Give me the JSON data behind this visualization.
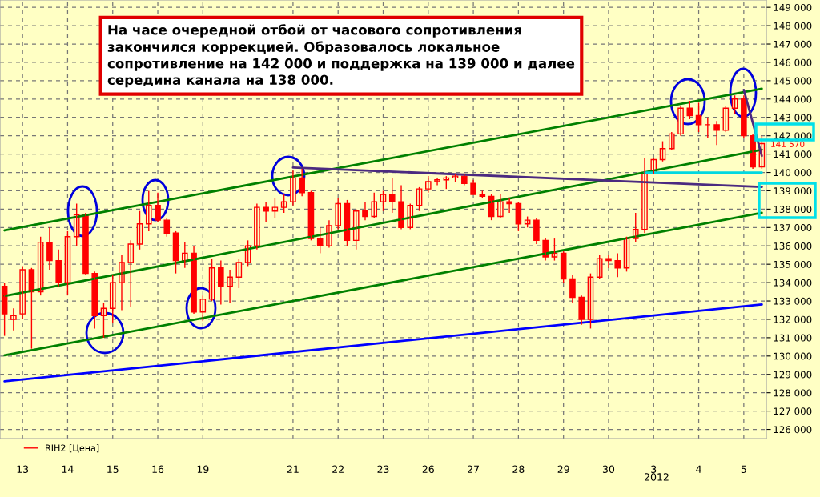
{
  "chart_data": {
    "type": "candlestick",
    "categories": [
      null,
      null,
      "13",
      null,
      null,
      null,
      null,
      "14",
      null,
      null,
      null,
      null,
      "15",
      null,
      null,
      null,
      null,
      "16",
      null,
      null,
      null,
      null,
      "19",
      null,
      null,
      null,
      null,
      null,
      null,
      null,
      null,
      null,
      "21",
      null,
      null,
      null,
      null,
      "22",
      null,
      null,
      null,
      null,
      "23",
      null,
      null,
      null,
      null,
      "26",
      null,
      null,
      null,
      null,
      "27",
      null,
      null,
      null,
      null,
      "28",
      null,
      null,
      null,
      null,
      "29",
      null,
      null,
      null,
      null,
      "30",
      null,
      null,
      null,
      null,
      "3",
      null,
      null,
      null,
      null,
      "4",
      null,
      null,
      null,
      null,
      "5",
      null,
      null
    ],
    "series": [
      {
        "type": "line",
        "color": "#008000",
        "values": [
          136840,
          null,
          null,
          null,
          null,
          null,
          null,
          null,
          null,
          null,
          null,
          null,
          null,
          null,
          null,
          null,
          null,
          null,
          null,
          null,
          null,
          null,
          null,
          null,
          null,
          null,
          null,
          null,
          null,
          null,
          null,
          null,
          null,
          null,
          null,
          null,
          null,
          null,
          null,
          null,
          null,
          null,
          null,
          null,
          null,
          null,
          null,
          null,
          null,
          null,
          null,
          null,
          null,
          null,
          null,
          null,
          null,
          null,
          null,
          null,
          null,
          null,
          null,
          null,
          null,
          null,
          null,
          null,
          null,
          null,
          null,
          null,
          null,
          null,
          null,
          null,
          null,
          null,
          null,
          null,
          null,
          null,
          null,
          null,
          144560
        ]
      },
      {
        "type": "line",
        "color": "#008000",
        "values": [
          133270,
          null,
          null,
          null,
          null,
          null,
          null,
          null,
          null,
          null,
          null,
          null,
          null,
          null,
          null,
          null,
          null,
          null,
          null,
          null,
          null,
          null,
          null,
          null,
          null,
          null,
          null,
          null,
          null,
          null,
          null,
          null,
          null,
          null,
          null,
          null,
          null,
          null,
          null,
          null,
          null,
          null,
          null,
          null,
          null,
          null,
          null,
          null,
          null,
          null,
          null,
          null,
          null,
          null,
          null,
          null,
          null,
          null,
          null,
          null,
          null,
          null,
          null,
          null,
          null,
          null,
          null,
          null,
          null,
          null,
          null,
          null,
          null,
          null,
          null,
          null,
          null,
          null,
          null,
          null,
          null,
          null,
          null,
          null,
          141240
        ]
      },
      {
        "type": "line",
        "color": "#008000",
        "values": [
          130040,
          null,
          null,
          null,
          null,
          null,
          null,
          null,
          null,
          null,
          null,
          null,
          null,
          null,
          null,
          null,
          null,
          null,
          null,
          null,
          null,
          null,
          null,
          null,
          null,
          null,
          null,
          null,
          null,
          null,
          null,
          null,
          null,
          null,
          null,
          null,
          null,
          null,
          null,
          null,
          null,
          null,
          null,
          null,
          null,
          null,
          null,
          null,
          null,
          null,
          null,
          null,
          null,
          null,
          null,
          null,
          null,
          null,
          null,
          null,
          null,
          null,
          null,
          null,
          null,
          null,
          null,
          null,
          null,
          null,
          null,
          null,
          null,
          null,
          null,
          null,
          null,
          null,
          null,
          null,
          null,
          null,
          null,
          null,
          137800
        ]
      },
      {
        "type": "line",
        "color": "#0000ff",
        "values": [
          128620,
          null,
          null,
          null,
          null,
          null,
          null,
          null,
          null,
          null,
          null,
          null,
          null,
          null,
          null,
          null,
          null,
          null,
          null,
          null,
          null,
          null,
          null,
          null,
          null,
          null,
          null,
          null,
          null,
          null,
          null,
          null,
          null,
          null,
          null,
          null,
          null,
          null,
          null,
          null,
          null,
          null,
          null,
          null,
          null,
          null,
          null,
          null,
          null,
          null,
          null,
          null,
          null,
          null,
          null,
          null,
          null,
          null,
          null,
          null,
          null,
          null,
          null,
          null,
          null,
          null,
          null,
          null,
          null,
          null,
          null,
          null,
          null,
          null,
          null,
          null,
          null,
          null,
          null,
          null,
          null,
          null,
          null,
          null,
          132810
        ]
      },
      {
        "type": "line",
        "color": "#4b2a80",
        "values": [
          null,
          null,
          null,
          null,
          null,
          null,
          null,
          null,
          null,
          null,
          null,
          null,
          null,
          null,
          null,
          null,
          null,
          null,
          null,
          null,
          null,
          null,
          null,
          null,
          null,
          null,
          null,
          null,
          null,
          null,
          null,
          null,
          140270,
          null,
          null,
          null,
          null,
          null,
          null,
          null,
          null,
          null,
          null,
          null,
          null,
          null,
          null,
          null,
          null,
          null,
          null,
          null,
          null,
          null,
          null,
          null,
          null,
          null,
          null,
          null,
          null,
          null,
          null,
          null,
          null,
          null,
          null,
          null,
          null,
          null,
          null,
          null,
          null,
          null,
          null,
          null,
          null,
          null,
          null,
          null,
          null,
          null,
          null,
          null,
          139210
        ]
      },
      {
        "type": "line",
        "color": "#00d8e0",
        "values": [
          null,
          null,
          null,
          null,
          null,
          null,
          null,
          null,
          null,
          null,
          null,
          null,
          null,
          null,
          null,
          null,
          null,
          null,
          null,
          null,
          null,
          null,
          null,
          null,
          null,
          null,
          null,
          null,
          null,
          null,
          null,
          null,
          null,
          null,
          null,
          null,
          null,
          null,
          null,
          null,
          null,
          null,
          null,
          null,
          null,
          null,
          null,
          null,
          null,
          null,
          null,
          null,
          null,
          null,
          null,
          null,
          null,
          null,
          null,
          null,
          null,
          null,
          null,
          null,
          null,
          null,
          null,
          null,
          null,
          null,
          null,
          140000,
          null,
          null,
          null,
          null,
          null,
          null,
          null,
          null,
          null,
          null,
          null,
          null,
          140000
        ]
      },
      {
        "type": "line",
        "color": "#4b2a80",
        "values": [
          null,
          null,
          null,
          null,
          null,
          null,
          null,
          null,
          null,
          null,
          null,
          null,
          null,
          null,
          null,
          null,
          null,
          null,
          null,
          null,
          null,
          null,
          null,
          null,
          null,
          null,
          null,
          null,
          null,
          null,
          null,
          null,
          null,
          null,
          null,
          null,
          null,
          null,
          null,
          null,
          null,
          null,
          null,
          null,
          null,
          null,
          null,
          null,
          null,
          null,
          null,
          null,
          null,
          null,
          null,
          null,
          null,
          null,
          null,
          null,
          null,
          null,
          null,
          null,
          null,
          null,
          null,
          null,
          null,
          null,
          null,
          null,
          null,
          null,
          null,
          null,
          null,
          null,
          null,
          null,
          null,
          null,
          144500,
          null,
          140900
        ]
      },
      {
        "type": "candlestick",
        "name": "RIH2 [Цена]",
        "color": "#ff0000",
        "ohlc": [
          [
            133800,
            134000,
            131100,
            132300
          ],
          [
            132000,
            132600,
            131400,
            132200
          ],
          [
            132300,
            134900,
            132000,
            134700
          ],
          [
            134700,
            134800,
            130400,
            133500
          ],
          [
            133500,
            136500,
            133300,
            136200
          ],
          [
            136200,
            137000,
            134700,
            135200
          ],
          [
            135200,
            135800,
            133800,
            134000
          ],
          [
            134000,
            136800,
            133300,
            136500
          ],
          [
            136500,
            138300,
            136000,
            137700
          ],
          [
            137700,
            137800,
            134400,
            134500
          ],
          [
            134500,
            134600,
            131500,
            132200
          ],
          [
            132200,
            132900,
            131000,
            132600
          ],
          [
            132600,
            134400,
            131800,
            134000
          ],
          [
            134000,
            135500,
            132500,
            135100
          ],
          [
            135100,
            136300,
            132700,
            136100
          ],
          [
            136100,
            137900,
            135800,
            137200
          ],
          [
            137200,
            139000,
            136800,
            138200
          ],
          [
            138200,
            138900,
            137300,
            137400
          ],
          [
            137400,
            137500,
            136500,
            136700
          ],
          [
            136700,
            136800,
            134500,
            135200
          ],
          [
            135200,
            136200,
            134800,
            135600
          ],
          [
            135600,
            136000,
            132300,
            132400
          ],
          [
            132400,
            133300,
            131900,
            133100
          ],
          [
            133100,
            135300,
            133000,
            134800
          ],
          [
            134800,
            135200,
            132800,
            133800
          ],
          [
            133800,
            134700,
            132900,
            134300
          ],
          [
            134300,
            135300,
            133700,
            135100
          ],
          [
            135100,
            136300,
            134900,
            136000
          ],
          [
            136000,
            138300,
            135800,
            138100
          ],
          [
            138100,
            138400,
            137300,
            137900
          ],
          [
            137900,
            138600,
            137500,
            138100
          ],
          [
            138100,
            138800,
            137800,
            138400
          ],
          [
            138400,
            140100,
            138200,
            139700
          ],
          [
            139700,
            140200,
            138700,
            138900
          ],
          [
            138900,
            139000,
            136300,
            136400
          ],
          [
            136400,
            137000,
            135600,
            136000
          ],
          [
            136000,
            137400,
            135900,
            137100
          ],
          [
            137100,
            138600,
            136900,
            138300
          ],
          [
            138300,
            138500,
            136000,
            136300
          ],
          [
            136300,
            138000,
            135800,
            137900
          ],
          [
            137900,
            138400,
            137400,
            137600
          ],
          [
            137600,
            138900,
            137500,
            138400
          ],
          [
            138400,
            139000,
            137900,
            138800
          ],
          [
            138800,
            139700,
            137800,
            138400
          ],
          [
            138400,
            139300,
            136900,
            137000
          ],
          [
            137000,
            138300,
            136900,
            138200
          ],
          [
            138200,
            139200,
            137900,
            139100
          ],
          [
            139100,
            139800,
            138900,
            139500
          ],
          [
            139500,
            139700,
            139300,
            139600
          ],
          [
            139600,
            139800,
            139100,
            139700
          ],
          [
            139700,
            139900,
            139500,
            139800
          ],
          [
            139800,
            139900,
            139300,
            139400
          ],
          [
            139400,
            139600,
            138800,
            138800
          ],
          [
            138800,
            139000,
            138600,
            138700
          ],
          [
            138700,
            138800,
            137400,
            137600
          ],
          [
            137600,
            138800,
            137500,
            138400
          ],
          [
            138400,
            138600,
            137800,
            138300
          ],
          [
            138300,
            138400,
            136800,
            137200
          ],
          [
            137200,
            137600,
            137000,
            137400
          ],
          [
            137400,
            137500,
            136100,
            136300
          ],
          [
            136300,
            136400,
            135200,
            135400
          ],
          [
            135400,
            136400,
            135200,
            135600
          ],
          [
            135600,
            135700,
            134000,
            134200
          ],
          [
            134200,
            134400,
            132900,
            133200
          ],
          [
            133200,
            133300,
            131700,
            132000
          ],
          [
            132000,
            134500,
            131500,
            134300
          ],
          [
            134300,
            135500,
            134200,
            135300
          ],
          [
            135300,
            135500,
            134800,
            135200
          ],
          [
            135200,
            135600,
            134300,
            134800
          ],
          [
            134800,
            136500,
            134600,
            136400
          ],
          [
            136400,
            137800,
            136200,
            136900
          ],
          [
            136900,
            140800,
            136700,
            140000
          ],
          [
            140000,
            140800,
            139900,
            140700
          ],
          [
            140700,
            141700,
            140600,
            141300
          ],
          [
            141300,
            142200,
            141200,
            142100
          ],
          [
            142100,
            143600,
            142000,
            143500
          ],
          [
            143500,
            143900,
            142900,
            143100
          ],
          [
            143100,
            143800,
            142200,
            142600
          ],
          [
            142600,
            143000,
            141900,
            142600
          ],
          [
            142600,
            142800,
            141500,
            142300
          ],
          [
            142300,
            143600,
            142200,
            143500
          ],
          [
            143500,
            144200,
            143200,
            144000
          ],
          [
            144000,
            144200,
            141900,
            142000
          ],
          [
            142000,
            142100,
            140200,
            140300
          ],
          [
            140300,
            142000,
            140200,
            141570
          ]
        ]
      }
    ],
    "ylim": [
      125500,
      149400
    ],
    "yticks": [
      {
        "value": 126000,
        "label": "126 000"
      },
      {
        "value": 127000,
        "label": "127 000"
      },
      {
        "value": 128000,
        "label": "128 000"
      },
      {
        "value": 129000,
        "label": "129 000"
      },
      {
        "value": 130000,
        "label": "130 000"
      },
      {
        "value": 131000,
        "label": "131 000"
      },
      {
        "value": 132000,
        "label": "132 000"
      },
      {
        "value": 133000,
        "label": "133 000"
      },
      {
        "value": 134000,
        "label": "134 000"
      },
      {
        "value": 135000,
        "label": "135 000"
      },
      {
        "value": 136000,
        "label": "136 000"
      },
      {
        "value": 137000,
        "label": "137 000"
      },
      {
        "value": 138000,
        "label": "138 000"
      },
      {
        "value": 139000,
        "label": "139 000"
      },
      {
        "value": 140000,
        "label": "140 000"
      },
      {
        "value": 141000,
        "label": "141 000"
      },
      {
        "value": 142000,
        "label": "142 000"
      },
      {
        "value": 143000,
        "label": "143 000"
      },
      {
        "value": 144000,
        "label": "144 000"
      },
      {
        "value": 145000,
        "label": "145 000"
      },
      {
        "value": 146000,
        "label": "146 000"
      },
      {
        "value": 147000,
        "label": "147 000"
      },
      {
        "value": 148000,
        "label": "148 000"
      },
      {
        "value": 149000,
        "label": "149 000"
      }
    ],
    "annotations": [
      "На часе очередной отбой от часового сопротивления\nзакончился коррекцией. Образовалось локальное\nсопротивление на 142 000 и поддержка на 139 000 и далее\nсередина канала на 138 000.",
      "141 570",
      "2012"
    ],
    "grid": true,
    "legend": "bottom left"
  }
}
